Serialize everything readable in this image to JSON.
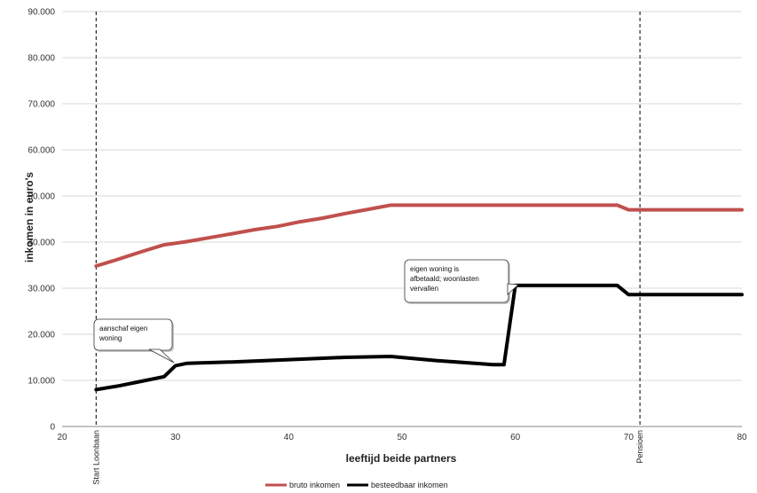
{
  "chart_data": {
    "type": "line",
    "title": "",
    "xlabel": "leeftijd beide partners",
    "ylabel": "inkomen in euro's",
    "xlim": [
      20,
      80
    ],
    "ylim": [
      0,
      90000
    ],
    "x_ticks": [
      {
        "value": 20,
        "label": "20"
      },
      {
        "value": 30,
        "label": "30"
      },
      {
        "value": 40,
        "label": "40"
      },
      {
        "value": 50,
        "label": "50"
      },
      {
        "value": 60,
        "label": "60"
      },
      {
        "value": 70,
        "label": "70"
      },
      {
        "value": 80,
        "label": "80"
      }
    ],
    "y_ticks": [
      {
        "value": 0,
        "label": "0"
      },
      {
        "value": 10000,
        "label": "10.000"
      },
      {
        "value": 20000,
        "label": "20.000"
      },
      {
        "value": 30000,
        "label": "30.000"
      },
      {
        "value": 40000,
        "label": "40.000"
      },
      {
        "value": 50000,
        "label": "50.000"
      },
      {
        "value": 60000,
        "label": "60.000"
      },
      {
        "value": 70000,
        "label": "70.000"
      },
      {
        "value": 80000,
        "label": "80.000"
      },
      {
        "value": 90000,
        "label": "90.000"
      }
    ],
    "grid": "horizontal",
    "legend": "bottom-center",
    "series": [
      {
        "name": "bruto inkomen",
        "color": "#c0504d",
        "points": [
          [
            23,
            34800
          ],
          [
            25,
            36300
          ],
          [
            27,
            37900
          ],
          [
            29,
            39400
          ],
          [
            31,
            40100
          ],
          [
            35,
            41800
          ],
          [
            37,
            42700
          ],
          [
            39,
            43400
          ],
          [
            41,
            44400
          ],
          [
            43,
            45200
          ],
          [
            45,
            46200
          ],
          [
            47,
            47100
          ],
          [
            49,
            48000
          ],
          [
            55,
            48000
          ],
          [
            60,
            48000
          ],
          [
            65,
            48000
          ],
          [
            69,
            48000
          ],
          [
            70,
            47000
          ],
          [
            75,
            47000
          ],
          [
            80,
            47000
          ]
        ]
      },
      {
        "name": "besteedbaar inkomen",
        "color": "#000000",
        "points": [
          [
            23,
            8000
          ],
          [
            25,
            8800
          ],
          [
            27,
            9800
          ],
          [
            29,
            10800
          ],
          [
            30,
            13200
          ],
          [
            31,
            13700
          ],
          [
            35,
            14000
          ],
          [
            40,
            14500
          ],
          [
            45,
            15000
          ],
          [
            49,
            15200
          ],
          [
            53,
            14300
          ],
          [
            57,
            13600
          ],
          [
            58,
            13400
          ],
          [
            59,
            13400
          ],
          [
            60,
            30600
          ],
          [
            65,
            30600
          ],
          [
            69,
            30600
          ],
          [
            70,
            28600
          ],
          [
            75,
            28600
          ],
          [
            80,
            28600
          ]
        ]
      }
    ],
    "vertical_lines": [
      {
        "x": 23,
        "label": "Start Loonbaan"
      },
      {
        "x": 71,
        "label": "Pensioen"
      }
    ],
    "annotations": [
      {
        "lines": [
          "aanschaf eigen",
          "woning"
        ],
        "target": [
          30,
          13200
        ]
      },
      {
        "lines": [
          "eigen woning is",
          "afbetaald; woonlasten",
          "vervallen"
        ],
        "target": [
          60,
          30600
        ]
      }
    ]
  }
}
